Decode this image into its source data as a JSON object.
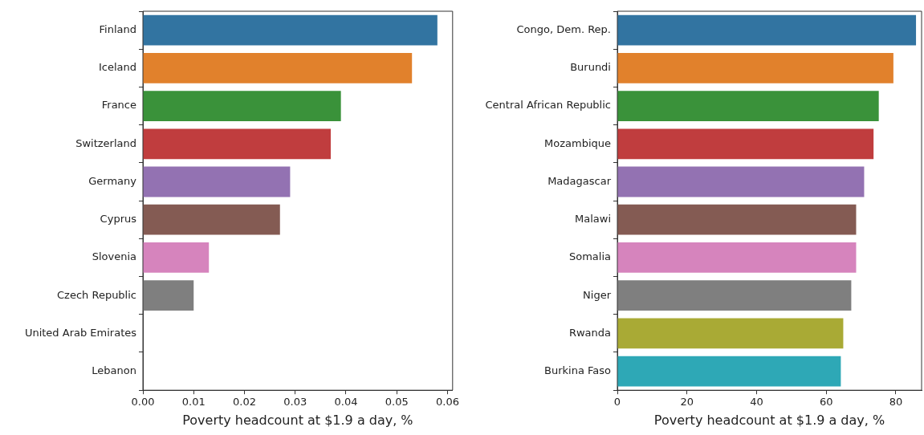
{
  "chart_data": [
    {
      "type": "bar",
      "orientation": "horizontal",
      "xlabel": "Poverty headcount at $1.9 a day, %",
      "categories": [
        "Finland",
        "Iceland",
        "France",
        "Switzerland",
        "Germany",
        "Cyprus",
        "Slovenia",
        "Czech Republic",
        "United Arab Emirates",
        "Lebanon"
      ],
      "values": [
        0.058,
        0.053,
        0.039,
        0.037,
        0.029,
        0.027,
        0.013,
        0.01,
        0,
        0
      ],
      "colors": [
        "#3274a1",
        "#e1812c",
        "#3a923a",
        "#c03d3e",
        "#9372b2",
        "#845b53",
        "#d684bd",
        "#7f7f7f",
        "#a9aa35",
        "#2ea8b6"
      ],
      "xlim": [
        0,
        0.061
      ],
      "xticks": [
        {
          "value": 0,
          "label": "0.00"
        },
        {
          "value": 0.01,
          "label": "0.01"
        },
        {
          "value": 0.02,
          "label": "0.02"
        },
        {
          "value": 0.03,
          "label": "0.03"
        },
        {
          "value": 0.04,
          "label": "0.04"
        },
        {
          "value": 0.05,
          "label": "0.05"
        },
        {
          "value": 0.06,
          "label": "0.06"
        }
      ],
      "grid": false,
      "legend": false
    },
    {
      "type": "bar",
      "orientation": "horizontal",
      "xlabel": "Poverty headcount at $1.9 a day, %",
      "categories": [
        "Congo, Dem. Rep.",
        "Burundi",
        "Central African Republic",
        "Mozambique",
        "Madagascar",
        "Malawi",
        "Somalia",
        "Niger",
        "Rwanda",
        "Burkina Faso"
      ],
      "values": [
        85.8,
        79.3,
        75.1,
        73.6,
        70.9,
        68.6,
        68.6,
        67.2,
        64.9,
        64.2
      ],
      "colors": [
        "#3274a1",
        "#e1812c",
        "#3a923a",
        "#c03d3e",
        "#9372b2",
        "#845b53",
        "#d684bd",
        "#7f7f7f",
        "#a9aa35",
        "#2ea8b6"
      ],
      "xlim": [
        0,
        87.4
      ],
      "xticks": [
        0,
        20,
        40,
        60,
        80
      ],
      "grid": false,
      "legend": false
    }
  ]
}
